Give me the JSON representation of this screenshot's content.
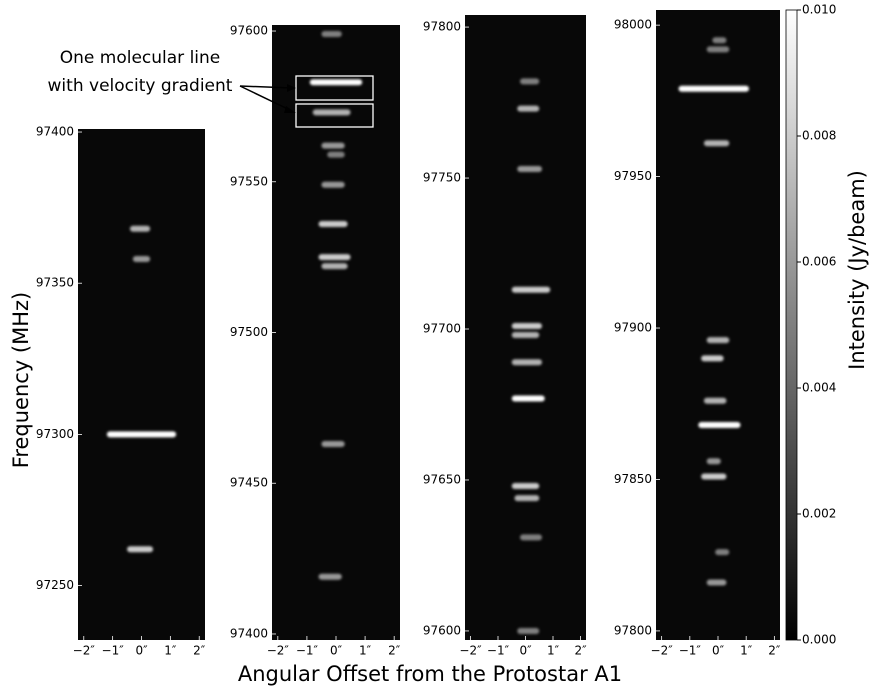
{
  "chart_data": {
    "type": "heatmap",
    "xlabel": "Angular Offset from the Protostar A1",
    "ylabel": "Frequency (MHz)",
    "annotation": [
      "One molecular line",
      "with velocity gradient"
    ],
    "xlim": [
      -2.2,
      2.2
    ],
    "xticks": [
      {
        "value": -2,
        "label": "−2″"
      },
      {
        "value": -1,
        "label": "−1″"
      },
      {
        "value": 0,
        "label": "0″"
      },
      {
        "value": 1,
        "label": "1″"
      },
      {
        "value": 2,
        "label": "2″"
      }
    ],
    "colorbar": {
      "label": "Intensity (Jy/beam)",
      "lim": [
        0,
        0.01
      ],
      "ticks": [
        {
          "value": 0,
          "label": "0.000"
        },
        {
          "value": 0.002,
          "label": "0.002"
        },
        {
          "value": 0.004,
          "label": "0.004"
        },
        {
          "value": 0.006,
          "label": "0.006"
        },
        {
          "value": 0.008,
          "label": "0.008"
        },
        {
          "value": 0.01,
          "label": "0.010"
        }
      ]
    },
    "panels": [
      {
        "ylim": [
          97232,
          97401
        ],
        "yticks": [
          97250,
          97300,
          97350,
          97400
        ],
        "features": [
          {
            "freq": 97368,
            "offset": [
              -0.4,
              0.3
            ],
            "intensity": 0.007
          },
          {
            "freq": 97358,
            "offset": [
              -0.3,
              0.3
            ],
            "intensity": 0.006
          },
          {
            "freq": 97300,
            "offset": [
              -1.2,
              1.2
            ],
            "intensity": 0.01
          },
          {
            "freq": 97262,
            "offset": [
              -0.5,
              0.4
            ],
            "intensity": 0.008
          }
        ]
      },
      {
        "ylim": [
          97398,
          97602
        ],
        "yticks": [
          97400,
          97450,
          97500,
          97550,
          97600
        ],
        "features": [
          {
            "freq": 97599,
            "offset": [
              -0.5,
              0.2
            ],
            "intensity": 0.005
          },
          {
            "freq": 97583,
            "offset": [
              -0.9,
              0.9
            ],
            "intensity": 0.01
          },
          {
            "freq": 97573,
            "offset": [
              -0.8,
              0.5
            ],
            "intensity": 0.007
          },
          {
            "freq": 97562,
            "offset": [
              -0.5,
              0.3
            ],
            "intensity": 0.006
          },
          {
            "freq": 97559,
            "offset": [
              -0.3,
              0.3
            ],
            "intensity": 0.005
          },
          {
            "freq": 97549,
            "offset": [
              -0.5,
              0.3
            ],
            "intensity": 0.006
          },
          {
            "freq": 97536,
            "offset": [
              -0.6,
              0.4
            ],
            "intensity": 0.008
          },
          {
            "freq": 97525,
            "offset": [
              -0.6,
              0.5
            ],
            "intensity": 0.008
          },
          {
            "freq": 97522,
            "offset": [
              -0.5,
              0.4
            ],
            "intensity": 0.007
          },
          {
            "freq": 97463,
            "offset": [
              -0.5,
              0.3
            ],
            "intensity": 0.006
          },
          {
            "freq": 97419,
            "offset": [
              -0.6,
              0.2
            ],
            "intensity": 0.006
          }
        ]
      },
      {
        "ylim": [
          97597,
          97804
        ],
        "yticks": [
          97600,
          97650,
          97700,
          97750,
          97800
        ],
        "features": [
          {
            "freq": 97782,
            "offset": [
              -0.2,
              0.5
            ],
            "intensity": 0.005
          },
          {
            "freq": 97773,
            "offset": [
              -0.3,
              0.5
            ],
            "intensity": 0.007
          },
          {
            "freq": 97753,
            "offset": [
              -0.3,
              0.6
            ],
            "intensity": 0.006
          },
          {
            "freq": 97713,
            "offset": [
              -0.5,
              0.9
            ],
            "intensity": 0.008
          },
          {
            "freq": 97701,
            "offset": [
              -0.5,
              0.6
            ],
            "intensity": 0.008
          },
          {
            "freq": 97698,
            "offset": [
              -0.5,
              0.5
            ],
            "intensity": 0.007
          },
          {
            "freq": 97689,
            "offset": [
              -0.5,
              0.6
            ],
            "intensity": 0.007
          },
          {
            "freq": 97677,
            "offset": [
              -0.5,
              0.7
            ],
            "intensity": 0.01
          },
          {
            "freq": 97648,
            "offset": [
              -0.5,
              0.5
            ],
            "intensity": 0.008
          },
          {
            "freq": 97644,
            "offset": [
              -0.4,
              0.5
            ],
            "intensity": 0.007
          },
          {
            "freq": 97631,
            "offset": [
              -0.2,
              0.6
            ],
            "intensity": 0.005
          },
          {
            "freq": 97600,
            "offset": [
              -0.3,
              0.5
            ],
            "intensity": 0.005
          }
        ]
      },
      {
        "ylim": [
          97797,
          98005
        ],
        "yticks": [
          97800,
          97850,
          97900,
          97950,
          98000
        ],
        "features": [
          {
            "freq": 97995,
            "offset": [
              -0.2,
              0.3
            ],
            "intensity": 0.005
          },
          {
            "freq": 97992,
            "offset": [
              -0.4,
              0.4
            ],
            "intensity": 0.005
          },
          {
            "freq": 97979,
            "offset": [
              -1.4,
              1.1
            ],
            "intensity": 0.01
          },
          {
            "freq": 97961,
            "offset": [
              -0.5,
              0.4
            ],
            "intensity": 0.007
          },
          {
            "freq": 97896,
            "offset": [
              -0.4,
              0.4
            ],
            "intensity": 0.007
          },
          {
            "freq": 97890,
            "offset": [
              -0.6,
              0.2
            ],
            "intensity": 0.008
          },
          {
            "freq": 97876,
            "offset": [
              -0.5,
              0.3
            ],
            "intensity": 0.007
          },
          {
            "freq": 97868,
            "offset": [
              -0.7,
              0.8
            ],
            "intensity": 0.01
          },
          {
            "freq": 97856,
            "offset": [
              -0.4,
              0.1
            ],
            "intensity": 0.006
          },
          {
            "freq": 97851,
            "offset": [
              -0.6,
              0.3
            ],
            "intensity": 0.008
          },
          {
            "freq": 97826,
            "offset": [
              -0.1,
              0.4
            ],
            "intensity": 0.005
          },
          {
            "freq": 97816,
            "offset": [
              -0.4,
              0.3
            ],
            "intensity": 0.006
          }
        ]
      }
    ]
  }
}
